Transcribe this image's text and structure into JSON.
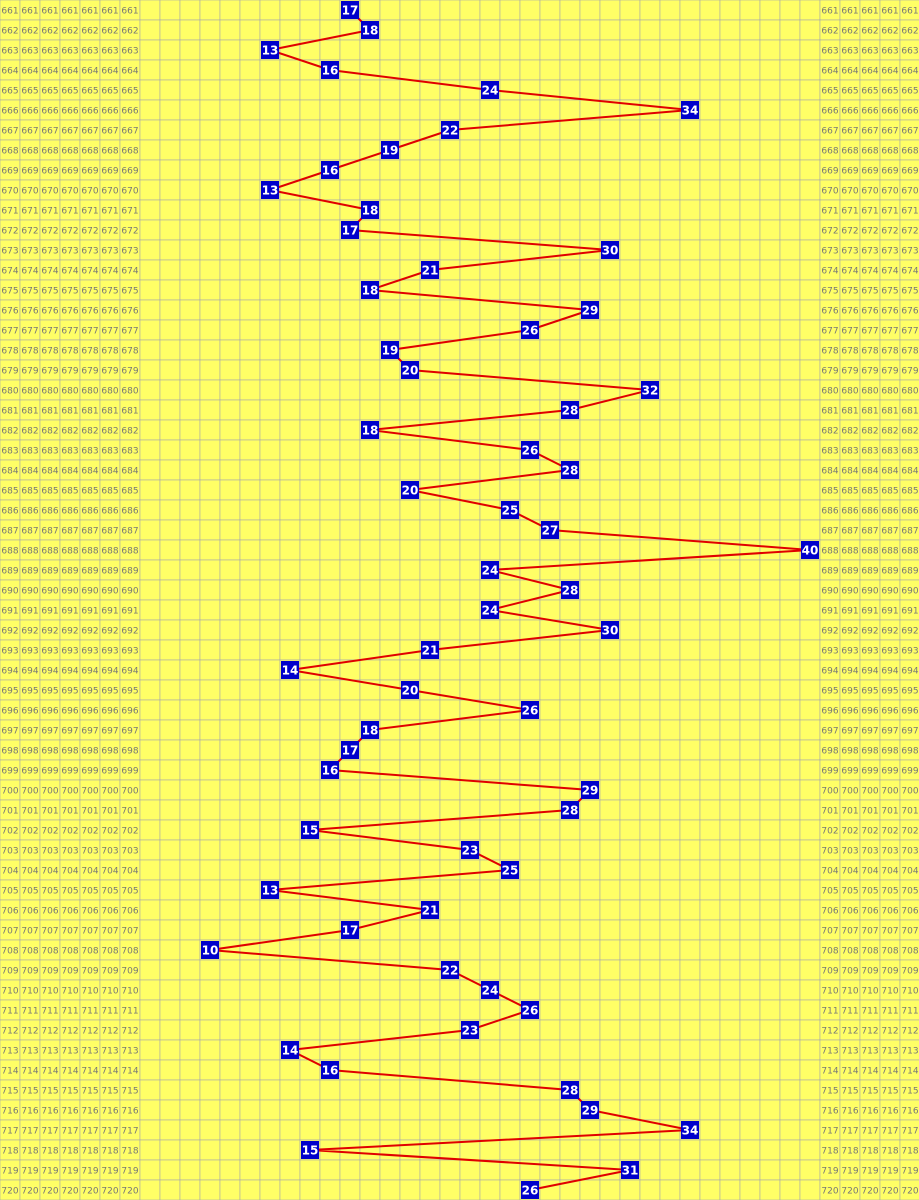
{
  "rows": [
    {
      "period": 661,
      "hit": 17
    },
    {
      "period": 662,
      "hit": 18
    },
    {
      "period": 663,
      "hit": 13
    },
    {
      "period": 664,
      "hit": 16
    },
    {
      "period": 665,
      "hit": 24
    },
    {
      "period": 666,
      "hit": 34
    },
    {
      "period": 667,
      "hit": 22
    },
    {
      "period": 668,
      "hit": 19
    },
    {
      "period": 669,
      "hit": 16
    },
    {
      "period": 670,
      "hit": 13
    },
    {
      "period": 671,
      "hit": 18
    },
    {
      "period": 672,
      "hit": 17
    },
    {
      "period": 673,
      "hit": 30
    },
    {
      "period": 674,
      "hit": 21
    },
    {
      "period": 675,
      "hit": 18
    },
    {
      "period": 676,
      "hit": 29
    },
    {
      "period": 677,
      "hit": 26
    },
    {
      "period": 678,
      "hit": 19
    },
    {
      "period": 679,
      "hit": 20
    },
    {
      "period": 680,
      "hit": 32
    },
    {
      "period": 681,
      "hit": 28
    },
    {
      "period": 682,
      "hit": 18
    },
    {
      "period": 683,
      "hit": 26
    },
    {
      "period": 684,
      "hit": 28
    },
    {
      "period": 685,
      "hit": 20
    },
    {
      "period": 686,
      "hit": 25
    },
    {
      "period": 687,
      "hit": 27
    },
    {
      "period": 688,
      "hit": 40
    },
    {
      "period": 689,
      "hit": 24
    },
    {
      "period": 690,
      "hit": 28
    },
    {
      "period": 691,
      "hit": 24
    },
    {
      "period": 692,
      "hit": 30
    },
    {
      "period": 693,
      "hit": 21
    },
    {
      "period": 694,
      "hit": 14
    },
    {
      "period": 695,
      "hit": 20
    },
    {
      "period": 696,
      "hit": 26
    },
    {
      "period": 697,
      "hit": 18
    },
    {
      "period": 698,
      "hit": 17
    },
    {
      "period": 699,
      "hit": 16
    },
    {
      "period": 700,
      "hit": 29
    },
    {
      "period": 701,
      "hit": 28
    },
    {
      "period": 702,
      "hit": 15
    },
    {
      "period": 703,
      "hit": 23
    },
    {
      "period": 704,
      "hit": 25
    },
    {
      "period": 705,
      "hit": 13
    },
    {
      "period": 706,
      "hit": 21
    },
    {
      "period": 707,
      "hit": 17
    },
    {
      "period": 708,
      "hit": 10
    },
    {
      "period": 709,
      "hit": 22
    },
    {
      "period": 710,
      "hit": 24
    },
    {
      "period": 711,
      "hit": 26
    },
    {
      "period": 712,
      "hit": 23
    },
    {
      "period": 713,
      "hit": 14
    },
    {
      "period": 714,
      "hit": 16
    },
    {
      "period": 715,
      "hit": 28
    },
    {
      "period": 716,
      "hit": 29
    },
    {
      "period": 717,
      "hit": 34
    },
    {
      "period": 718,
      "hit": 15
    },
    {
      "period": 719,
      "hit": 31
    },
    {
      "period": 720,
      "hit": 26
    }
  ]
}
